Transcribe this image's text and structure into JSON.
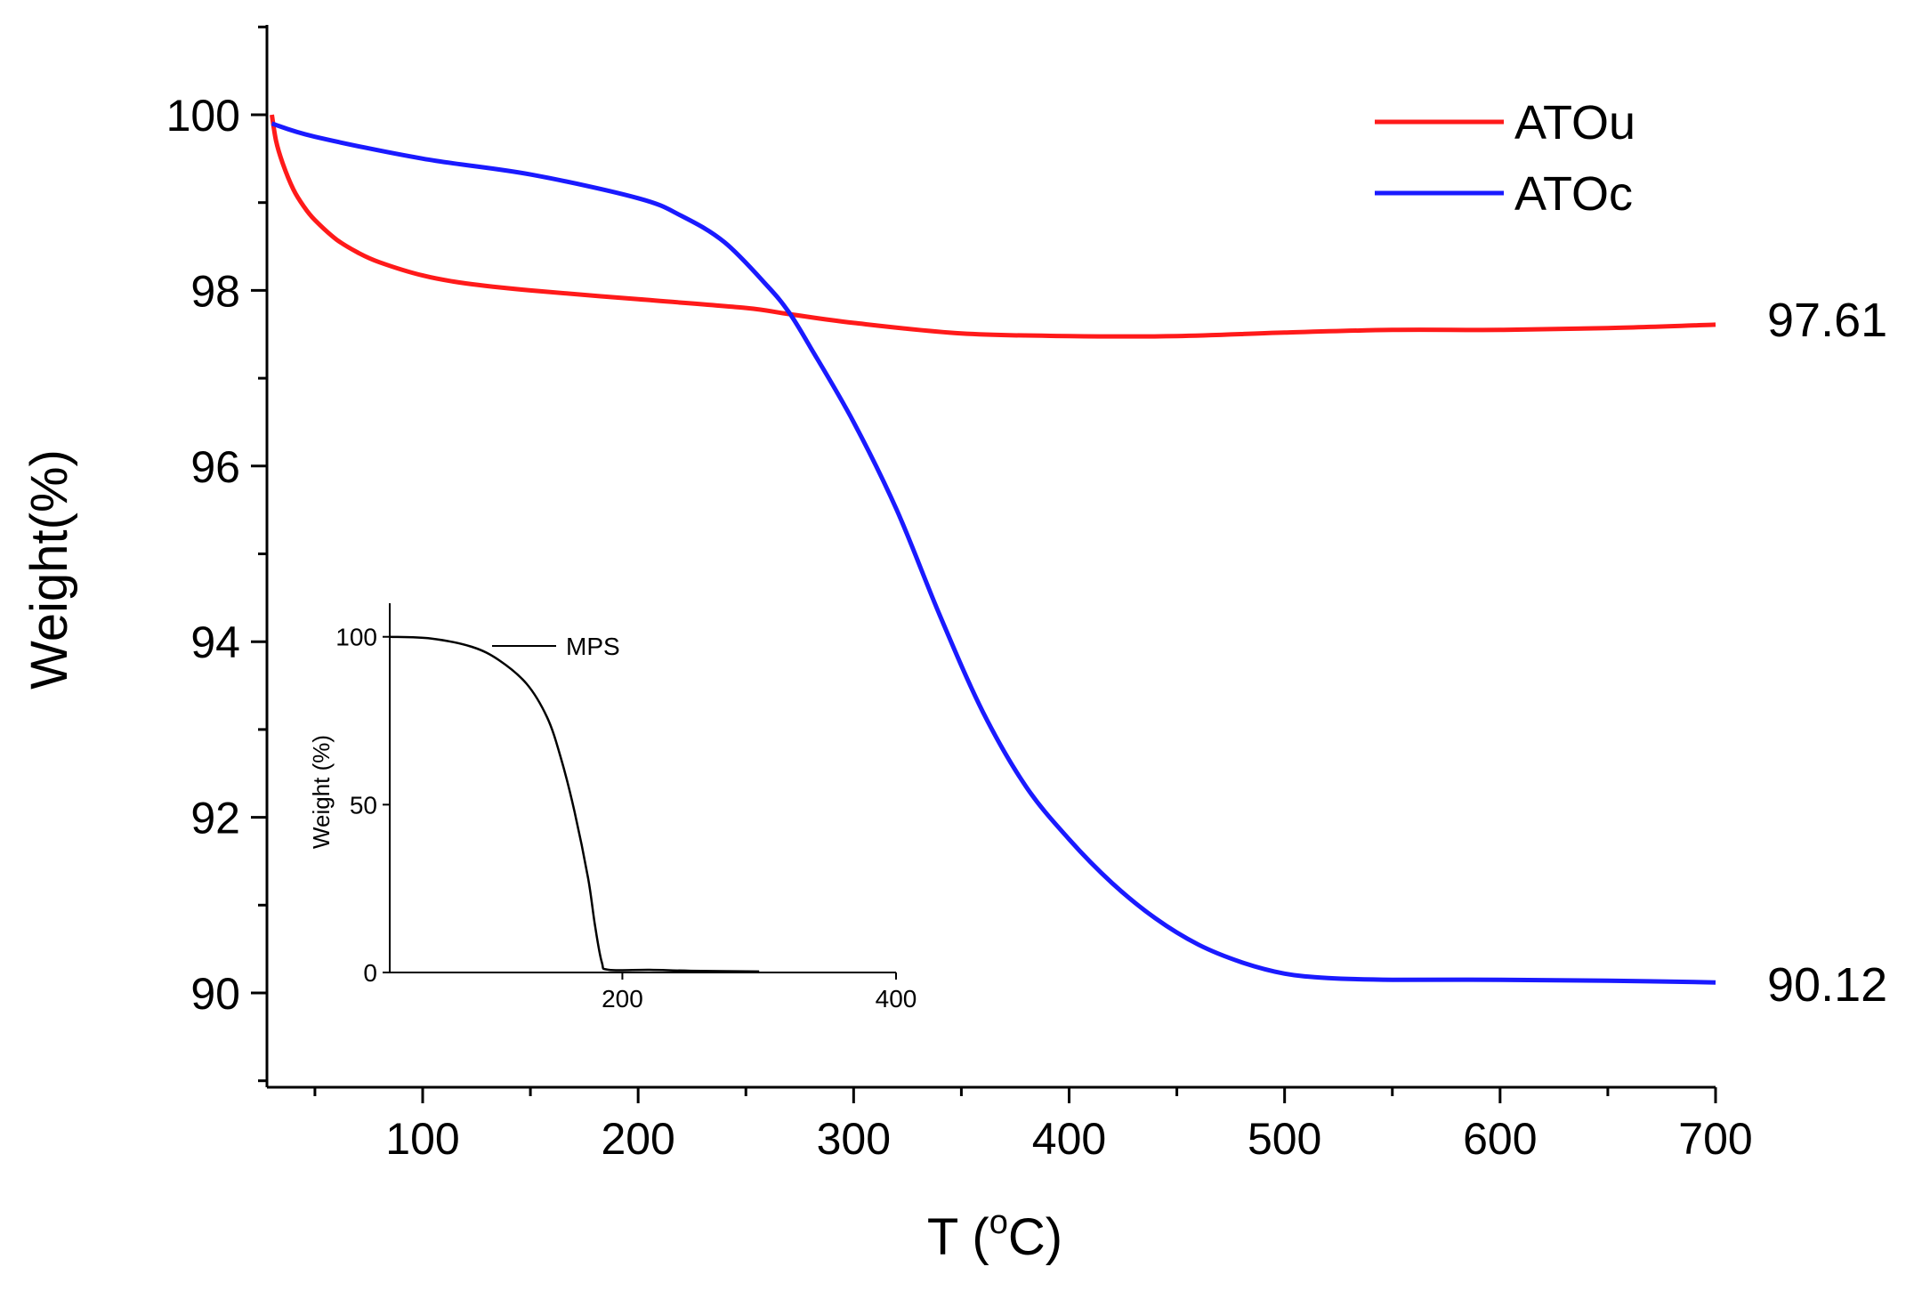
{
  "chart_data": {
    "type": "line",
    "title": "",
    "xlabel": "T (°C)",
    "xlabel_parts": {
      "prefix": "T (",
      "degree": "o",
      "suffix": "C)"
    },
    "ylabel": "Weight(%)",
    "xlim": [
      30,
      700
    ],
    "ylim": [
      89,
      101
    ],
    "x_ticks": [
      100,
      200,
      300,
      400,
      500,
      600,
      700
    ],
    "x_tick_labels": [
      "100",
      "200",
      "300",
      "400",
      "500",
      "600",
      "700"
    ],
    "y_ticks": [
      90,
      92,
      94,
      96,
      98,
      100
    ],
    "y_tick_labels": [
      "90",
      "92",
      "94",
      "96",
      "98",
      "100"
    ],
    "legend": {
      "placement": "top-right",
      "entries": [
        "ATOu",
        "ATOc"
      ]
    },
    "series": [
      {
        "name": "ATOu",
        "color": "#ff1a1a",
        "end_label": "97.61",
        "x": [
          30,
          32,
          35,
          40,
          45,
          50,
          60,
          70,
          80,
          100,
          120,
          150,
          200,
          250,
          270,
          300,
          350,
          400,
          450,
          500,
          550,
          600,
          650,
          700
        ],
        "y": [
          100.0,
          99.7,
          99.45,
          99.15,
          98.95,
          98.8,
          98.58,
          98.43,
          98.32,
          98.17,
          98.08,
          98.0,
          97.9,
          97.8,
          97.73,
          97.63,
          97.51,
          97.48,
          97.48,
          97.52,
          97.55,
          97.55,
          97.57,
          97.61
        ]
      },
      {
        "name": "ATOc",
        "color": "#1a1aff",
        "end_label": "90.12",
        "x": [
          30,
          50,
          100,
          150,
          200,
          220,
          240,
          260,
          270,
          280,
          300,
          320,
          340,
          360,
          380,
          400,
          420,
          440,
          460,
          480,
          500,
          520,
          550,
          600,
          650,
          700
        ],
        "y": [
          99.9,
          99.75,
          99.5,
          99.32,
          99.05,
          98.85,
          98.55,
          98.05,
          97.75,
          97.35,
          96.5,
          95.5,
          94.3,
          93.2,
          92.35,
          91.75,
          91.25,
          90.85,
          90.55,
          90.35,
          90.22,
          90.17,
          90.15,
          90.15,
          90.14,
          90.12
        ]
      }
    ],
    "inset": {
      "type": "line",
      "ylabel": "Weight (%)",
      "xlim": [
        30,
        400
      ],
      "ylim": [
        0,
        110
      ],
      "x_ticks": [
        200,
        400
      ],
      "x_tick_labels": [
        "200",
        "400"
      ],
      "y_ticks": [
        0,
        50,
        100
      ],
      "y_tick_labels": [
        "0",
        "50",
        "100"
      ],
      "legend": {
        "placement": "top-right",
        "entries": [
          "MPS"
        ]
      },
      "series": [
        {
          "name": "MPS",
          "color": "#000000",
          "x": [
            30,
            60,
            90,
            110,
            130,
            145,
            155,
            165,
            175,
            180,
            185,
            190,
            220,
            250,
            300
          ],
          "y": [
            100,
            99.5,
            97,
            93,
            86,
            76,
            64,
            48,
            28,
            14,
            3,
            0.8,
            0.8,
            0.5,
            0.3
          ]
        }
      ]
    }
  }
}
